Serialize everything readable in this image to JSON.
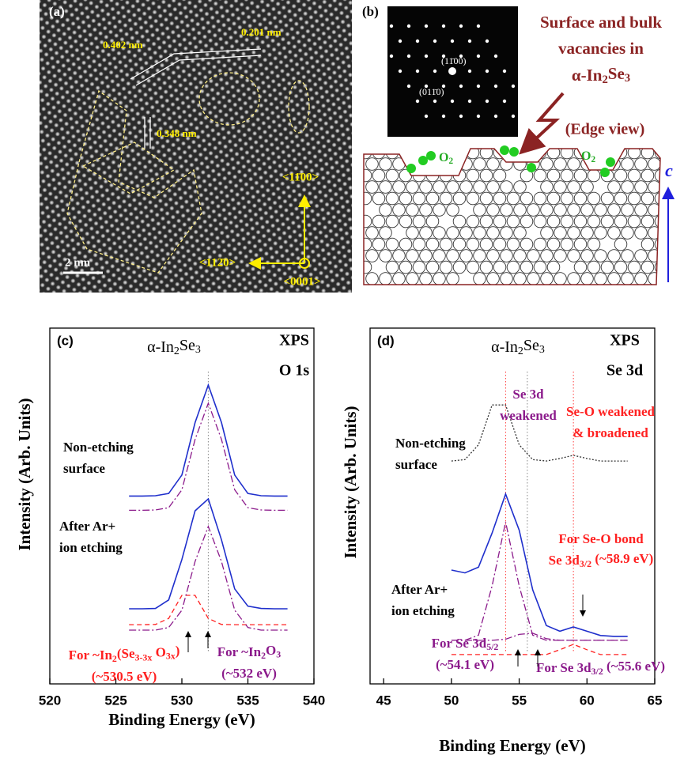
{
  "panel_a": {
    "label": "(a)",
    "spacings": [
      "0.402 nm",
      "0.201 nm",
      "0.348 nm"
    ],
    "scale_bar": "2 nm",
    "directions": [
      "<11̄00>",
      "<112̄0>",
      "<0001>"
    ]
  },
  "panel_b": {
    "label": "(b)",
    "spots": [
      "(11̄00)",
      "(011̄0)"
    ],
    "title": [
      [
        "Surface and bulk"
      ],
      [
        "vacancies in"
      ],
      [
        "α-In",
        {
          "t": "2",
          "sub": true
        },
        "Se",
        {
          "t": "3",
          "sub": true
        }
      ]
    ],
    "view": "(Edge view)",
    "gas": [
      [
        "O",
        {
          "t": "2",
          "sub": true
        }
      ],
      [
        "O",
        {
          "t": "2",
          "sub": true
        }
      ]
    ],
    "axis": "c"
  },
  "chart_data": [
    {
      "type": "line",
      "label": "(c)",
      "title": [
        "α-In",
        {
          "t": "2",
          "sub": true
        },
        "Se",
        {
          "t": "3",
          "sub": true
        }
      ],
      "method": "XPS",
      "region": "O 1s",
      "x_label": "Binding Energy (eV)",
      "y_label": "Intensity (Arb. Units)",
      "xlim": [
        520,
        540
      ],
      "xticks": [
        520,
        525,
        530,
        535,
        540
      ],
      "ylim": [
        -25,
        100
      ],
      "reference_lines": [
        {
          "value": 532,
          "color": "#888888"
        }
      ],
      "series": [
        {
          "color": "#1f2fcc",
          "dash": "solid",
          "x": [
            526,
            527,
            528,
            529,
            530,
            531,
            532,
            533,
            534,
            535,
            536,
            537,
            538
          ],
          "values": [
            41,
            41,
            41.1,
            41.9,
            48.4,
            66.8,
            80,
            66.8,
            48.4,
            41.9,
            41.1,
            41,
            41
          ]
        },
        {
          "color": "#8b1a8b",
          "dash": "dashdot",
          "x": [
            526,
            527,
            528,
            529,
            530,
            531,
            532,
            533,
            534,
            535,
            536,
            537,
            538
          ],
          "values": [
            36,
            36,
            36.1,
            36.9,
            43.2,
            60.9,
            73.6,
            60.9,
            43.2,
            36.9,
            36.1,
            36,
            36
          ]
        },
        {
          "color": "#1f2fcc",
          "dash": "solid",
          "x": [
            526,
            527,
            528,
            529,
            530,
            531,
            532,
            533,
            534,
            535,
            536,
            537,
            538
          ],
          "values": [
            1.4,
            1.4,
            1.5,
            4.5,
            18.7,
            35.8,
            40,
            25.6,
            8.4,
            2.3,
            1.5,
            1.4,
            1.4
          ]
        },
        {
          "color": "#ff2020",
          "dash": "dashed",
          "x": [
            526,
            527,
            528,
            529,
            530,
            531,
            532,
            533,
            534,
            535,
            536,
            537,
            538
          ],
          "values": [
            -4.2,
            -4.2,
            -4.1,
            -2,
            6.1,
            6.1,
            -2,
            -4.1,
            -4.2,
            -4.2,
            -4.2,
            -4.2,
            -4.2
          ]
        },
        {
          "color": "#8b1a8b",
          "dash": "dashdot",
          "x": [
            526,
            527,
            528,
            529,
            530,
            531,
            532,
            533,
            534,
            535,
            536,
            537,
            538
          ],
          "values": [
            -6.1,
            -6.1,
            -6.1,
            -5.2,
            0.9,
            18,
            30.3,
            18,
            0.9,
            -5.2,
            -6.1,
            -6.1,
            -6.1
          ]
        }
      ],
      "annotations": [
        {
          "color": "#000000",
          "lines": [
            [
              "Non-etching"
            ],
            [
              "surface"
            ]
          ]
        },
        {
          "color": "#000000",
          "lines": [
            [
              "After Ar+"
            ],
            [
              "ion etching"
            ]
          ]
        },
        {
          "color": "#ff2020",
          "lines": [
            [
              "For ~In",
              {
                "t": "2",
                "sub": true
              },
              "(Se",
              {
                "t": "3-3x",
                "sub": true
              },
              " O",
              {
                "t": "3x",
                "sub": true
              },
              ")"
            ],
            [
              "(~530.5 eV)"
            ]
          ]
        },
        {
          "color": "#8b1a8b",
          "lines": [
            [
              "For ~In",
              {
                "t": "2",
                "sub": true
              },
              "O",
              {
                "t": "3",
                "sub": true
              }
            ],
            [
              "(~532 eV)"
            ]
          ]
        }
      ]
    },
    {
      "type": "line",
      "label": "(d)",
      "title": [
        "α-In",
        {
          "t": "2",
          "sub": true
        },
        "Se",
        {
          "t": "3",
          "sub": true
        }
      ],
      "method": "XPS",
      "region": "Se 3d",
      "x_label": "Binding Energy (eV)",
      "y_label": "Intensity (Arb. Units)",
      "xlim": [
        44,
        65
      ],
      "xticks": [
        45,
        50,
        55,
        60,
        65
      ],
      "ylim": [
        -25,
        100
      ],
      "reference_lines": [
        {
          "value": 54,
          "color": "#ff4040"
        },
        {
          "value": 55.6,
          "color": "#888888"
        },
        {
          "value": 59,
          "color": "#ff4040"
        }
      ],
      "series": [
        {
          "color": "#333333",
          "dash": "dotted",
          "x": [
            50,
            51,
            52,
            53,
            54,
            55,
            56,
            57,
            58,
            59,
            60,
            61,
            62,
            63
          ],
          "values": [
            53.3,
            53.8,
            59,
            73,
            73,
            59,
            53.8,
            53.3,
            54.2,
            55.3,
            54.2,
            53.3,
            53.3,
            53.3
          ]
        },
        {
          "color": "#1f2fcc",
          "dash": "solid",
          "x": [
            50,
            51,
            52,
            53,
            54,
            55,
            56,
            57,
            58,
            59,
            60,
            61,
            62,
            63
          ],
          "values": [
            15,
            14,
            16,
            28,
            41.7,
            29,
            8,
            -4.5,
            -6.5,
            -5,
            -6.5,
            -8,
            -8.3,
            -8.3
          ]
        },
        {
          "color": "#8b1a8b",
          "dash": "dashdot",
          "x": [
            50,
            51,
            52,
            53,
            54,
            55,
            56,
            57,
            58,
            59,
            60,
            61,
            62,
            63
          ],
          "values": [
            -9.7,
            -9.7,
            -7.9,
            9.4,
            31.9,
            9.4,
            -7.9,
            -9.7,
            -9.7,
            -9.7,
            -9.7,
            -9.7,
            -9.7,
            -9.7
          ]
        },
        {
          "color": "#8b1a8b",
          "dash": "dashdot",
          "x": [
            50,
            51,
            52,
            53,
            54,
            55,
            56,
            57,
            58,
            59,
            60,
            61,
            62,
            63
          ],
          "values": [
            -9.7,
            -9.7,
            -9.7,
            -9.7,
            -9.3,
            -7.6,
            -7.2,
            -9.1,
            -9.7,
            -9.7,
            -9.7,
            -9.7,
            -9.7,
            -9.7
          ]
        },
        {
          "color": "#ff2020",
          "dash": "dashed",
          "x": [
            50,
            51,
            52,
            53,
            54,
            55,
            56,
            57,
            58,
            59,
            60,
            61,
            62,
            63
          ],
          "values": [
            -14.7,
            -14.7,
            -14.7,
            -14.7,
            -14.7,
            -14.7,
            -14.7,
            -14.7,
            -13,
            -11.1,
            -13,
            -14.7,
            -14.7,
            -14.7
          ]
        }
      ],
      "annotations": [
        {
          "color": "#8b1a8b",
          "lines": [
            [
              "Se 3d"
            ],
            [
              "weakened"
            ]
          ]
        },
        {
          "color": "#000000",
          "lines": [
            [
              "Non-etching"
            ],
            [
              "surface"
            ]
          ]
        },
        {
          "color": "#ff2020",
          "lines": [
            [
              "Se-O weakened"
            ],
            [
              "& broadened"
            ]
          ]
        },
        {
          "color": "#ff2020",
          "lines": [
            [
              "For Se-O bond"
            ],
            [
              "Se 3d",
              {
                "t": "3/2",
                "sub": true
              },
              " (~58.9 eV)"
            ]
          ]
        },
        {
          "color": "#000000",
          "lines": [
            [
              "After Ar+"
            ],
            [
              "ion etching"
            ]
          ]
        },
        {
          "color": "#8b1a8b",
          "lines": [
            [
              "For Se  3d",
              {
                "t": "5/2",
                "sub": true
              }
            ],
            [
              "(~54.1 eV)"
            ]
          ]
        },
        {
          "color": "#8b1a8b",
          "lines": [
            [
              "For Se  3d",
              {
                "t": "3/2",
                "sub": true
              },
              " (~55.6 eV)"
            ]
          ]
        }
      ]
    }
  ]
}
